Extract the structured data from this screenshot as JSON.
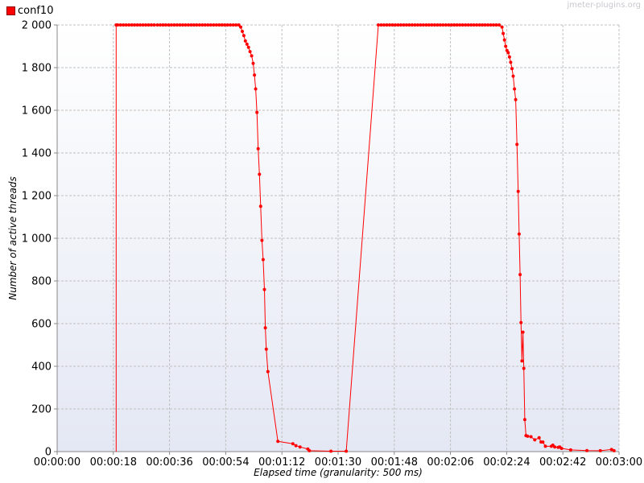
{
  "legend": {
    "label": "conf10"
  },
  "watermark": "jmeter-plugins.org",
  "chart_data": {
    "type": "line",
    "title": "",
    "xlabel": "Elapsed time (granularity: 500 ms)",
    "ylabel": "Number of active threads",
    "xlim": [
      0,
      180
    ],
    "ylim": [
      0,
      2000
    ],
    "x_ticks": [
      0,
      18,
      36,
      54,
      72,
      90,
      108,
      126,
      144,
      162,
      180
    ],
    "x_tick_labels": [
      "00:00:00",
      "00:00:18",
      "00:00:36",
      "00:00:54",
      "00:01:12",
      "00:01:30",
      "00:01:48",
      "00:02:06",
      "00:02:24",
      "00:02:42",
      "00:03:00"
    ],
    "y_ticks": [
      0,
      200,
      400,
      600,
      800,
      1000,
      1200,
      1400,
      1600,
      1800,
      2000
    ],
    "y_tick_labels": [
      "0",
      "200",
      "400",
      "600",
      "800",
      "1 000",
      "1 200",
      "1 400",
      "1 600",
      "1 800",
      "2 000"
    ],
    "grid": true,
    "legend_position": "top-left",
    "colors": {
      "series": "#ff0000",
      "grid": "#c0c0c0",
      "plot_bg_top": "#ffffff",
      "plot_bg_bottom": "#e4e8f4"
    },
    "series": [
      {
        "name": "conf10",
        "points": [
          [
            18.9,
            0
          ],
          [
            18.9,
            2000
          ],
          [
            19.4,
            2000
          ],
          [
            20.3,
            2000
          ],
          [
            21.2,
            2000
          ],
          [
            22.1,
            2000
          ],
          [
            23,
            2000
          ],
          [
            23.9,
            2000
          ],
          [
            24.8,
            2000
          ],
          [
            25.7,
            2000
          ],
          [
            26.6,
            2000
          ],
          [
            27.5,
            2000
          ],
          [
            28.4,
            2000
          ],
          [
            29.3,
            2000
          ],
          [
            30.2,
            2000
          ],
          [
            31.1,
            2000
          ],
          [
            32.1,
            2000
          ],
          [
            33,
            2000
          ],
          [
            33.9,
            2000
          ],
          [
            34.8,
            2000
          ],
          [
            35.7,
            2000
          ],
          [
            36.6,
            2000
          ],
          [
            37.5,
            2000
          ],
          [
            38.4,
            2000
          ],
          [
            39.3,
            2000
          ],
          [
            40.2,
            2000
          ],
          [
            41.1,
            2000
          ],
          [
            42,
            2000
          ],
          [
            42.9,
            2000
          ],
          [
            43.8,
            2000
          ],
          [
            44.7,
            2000
          ],
          [
            45.6,
            2000
          ],
          [
            46.5,
            2000
          ],
          [
            47.4,
            2000
          ],
          [
            48.3,
            2000
          ],
          [
            49.2,
            2000
          ],
          [
            50.1,
            2000
          ],
          [
            51,
            2000
          ],
          [
            51.9,
            2000
          ],
          [
            52.8,
            2000
          ],
          [
            53.7,
            2000
          ],
          [
            54.6,
            2000
          ],
          [
            55.5,
            2000
          ],
          [
            56.4,
            2000
          ],
          [
            57.3,
            2000
          ],
          [
            58.2,
            2000
          ],
          [
            58.8,
            1990
          ],
          [
            59.3,
            1970
          ],
          [
            59.8,
            1950
          ],
          [
            60.3,
            1925
          ],
          [
            60.8,
            1910
          ],
          [
            61.3,
            1895
          ],
          [
            61.8,
            1875
          ],
          [
            62.3,
            1855
          ],
          [
            62.8,
            1820
          ],
          [
            63.2,
            1765
          ],
          [
            63.6,
            1700
          ],
          [
            64,
            1590
          ],
          [
            64.4,
            1420
          ],
          [
            64.8,
            1300
          ],
          [
            65.2,
            1150
          ],
          [
            65.6,
            990
          ],
          [
            66,
            900
          ],
          [
            66.4,
            760
          ],
          [
            66.7,
            580
          ],
          [
            67,
            480
          ],
          [
            67.5,
            375
          ],
          [
            70.7,
            48
          ],
          [
            75.5,
            37
          ],
          [
            76.5,
            28
          ],
          [
            77.8,
            22
          ],
          [
            80.3,
            12
          ],
          [
            80.8,
            4
          ],
          [
            87.7,
            2
          ],
          [
            92.6,
            2
          ],
          [
            102.9,
            2000
          ],
          [
            103.8,
            2000
          ],
          [
            104.7,
            2000
          ],
          [
            105.6,
            2000
          ],
          [
            106.5,
            2000
          ],
          [
            107.4,
            2000
          ],
          [
            108.3,
            2000
          ],
          [
            109.2,
            2000
          ],
          [
            110.1,
            2000
          ],
          [
            111,
            2000
          ],
          [
            111.9,
            2000
          ],
          [
            112.8,
            2000
          ],
          [
            113.7,
            2000
          ],
          [
            114.6,
            2000
          ],
          [
            115.5,
            2000
          ],
          [
            116.4,
            2000
          ],
          [
            117.3,
            2000
          ],
          [
            118.2,
            2000
          ],
          [
            119.1,
            2000
          ],
          [
            120,
            2000
          ],
          [
            120.9,
            2000
          ],
          [
            121.8,
            2000
          ],
          [
            122.7,
            2000
          ],
          [
            123.6,
            2000
          ],
          [
            124.5,
            2000
          ],
          [
            125.4,
            2000
          ],
          [
            126.3,
            2000
          ],
          [
            127.2,
            2000
          ],
          [
            128.1,
            2000
          ],
          [
            129,
            2000
          ],
          [
            129.9,
            2000
          ],
          [
            130.8,
            2000
          ],
          [
            131.7,
            2000
          ],
          [
            132.6,
            2000
          ],
          [
            133.5,
            2000
          ],
          [
            134.4,
            2000
          ],
          [
            135.3,
            2000
          ],
          [
            136.2,
            2000
          ],
          [
            137.1,
            2000
          ],
          [
            138,
            2000
          ],
          [
            138.9,
            2000
          ],
          [
            139.8,
            2000
          ],
          [
            140.7,
            2000
          ],
          [
            141.6,
            2000
          ],
          [
            142.5,
            1990
          ],
          [
            142.9,
            1960
          ],
          [
            143.3,
            1930
          ],
          [
            143.7,
            1900
          ],
          [
            144.1,
            1880
          ],
          [
            144.5,
            1870
          ],
          [
            144.9,
            1850
          ],
          [
            145.3,
            1825
          ],
          [
            145.7,
            1795
          ],
          [
            146.1,
            1760
          ],
          [
            146.5,
            1700
          ],
          [
            146.9,
            1650
          ],
          [
            147.3,
            1440
          ],
          [
            147.7,
            1220
          ],
          [
            148,
            1020
          ],
          [
            148.3,
            830
          ],
          [
            148.6,
            605
          ],
          [
            148.9,
            425
          ],
          [
            149.2,
            560
          ],
          [
            149.5,
            390
          ],
          [
            149.8,
            150
          ],
          [
            150.2,
            75
          ],
          [
            150.7,
            72
          ],
          [
            151.8,
            70
          ],
          [
            153,
            55
          ],
          [
            154.4,
            65
          ],
          [
            155,
            45
          ],
          [
            155.6,
            45
          ],
          [
            156.4,
            25
          ],
          [
            158.3,
            25
          ],
          [
            158.8,
            30
          ],
          [
            159.4,
            22
          ],
          [
            160.5,
            20
          ],
          [
            161,
            22
          ],
          [
            161.6,
            15
          ],
          [
            164.5,
            8
          ],
          [
            169.7,
            5
          ],
          [
            174,
            4
          ],
          [
            177.6,
            10
          ],
          [
            178.4,
            4
          ]
        ]
      }
    ]
  }
}
